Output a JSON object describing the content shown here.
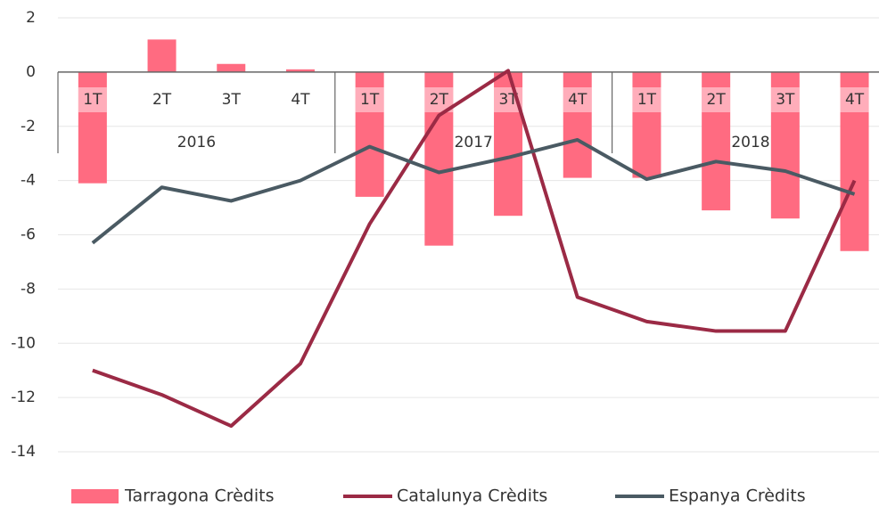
{
  "chart_data": {
    "type": "bar_line",
    "categories": [
      "1T",
      "2T",
      "3T",
      "4T",
      "1T",
      "2T",
      "3T",
      "4T",
      "1T",
      "2T",
      "3T",
      "4T"
    ],
    "year_groups": [
      "2016",
      "2017",
      "2018"
    ],
    "ylim": [
      -14,
      2
    ],
    "yticks": [
      2,
      0,
      -2,
      -4,
      -6,
      -8,
      -10,
      -12,
      -14
    ],
    "grid": true,
    "series": [
      {
        "name": "Tarragona Crèdits",
        "kind": "bar",
        "color": "#ff6b81",
        "values": [
          -4.1,
          1.2,
          0.3,
          0.1,
          -4.6,
          -6.4,
          -5.3,
          -3.9,
          -3.9,
          -5.1,
          -5.4,
          -6.6
        ]
      },
      {
        "name": "Catalunya Crèdits",
        "kind": "line",
        "color": "#9b2a45",
        "values": [
          -11.0,
          -11.9,
          -13.05,
          -10.75,
          -5.6,
          -1.6,
          0.05,
          -8.3,
          -9.2,
          -9.55,
          -9.55,
          -4.0
        ]
      },
      {
        "name": "Espanya Crèdits",
        "kind": "line",
        "color": "#4a5a63",
        "values": [
          -6.3,
          -4.25,
          -4.75,
          -4.0,
          -2.75,
          -3.7,
          -3.15,
          -2.5,
          -3.95,
          -3.3,
          -3.65,
          -4.5
        ]
      }
    ]
  }
}
